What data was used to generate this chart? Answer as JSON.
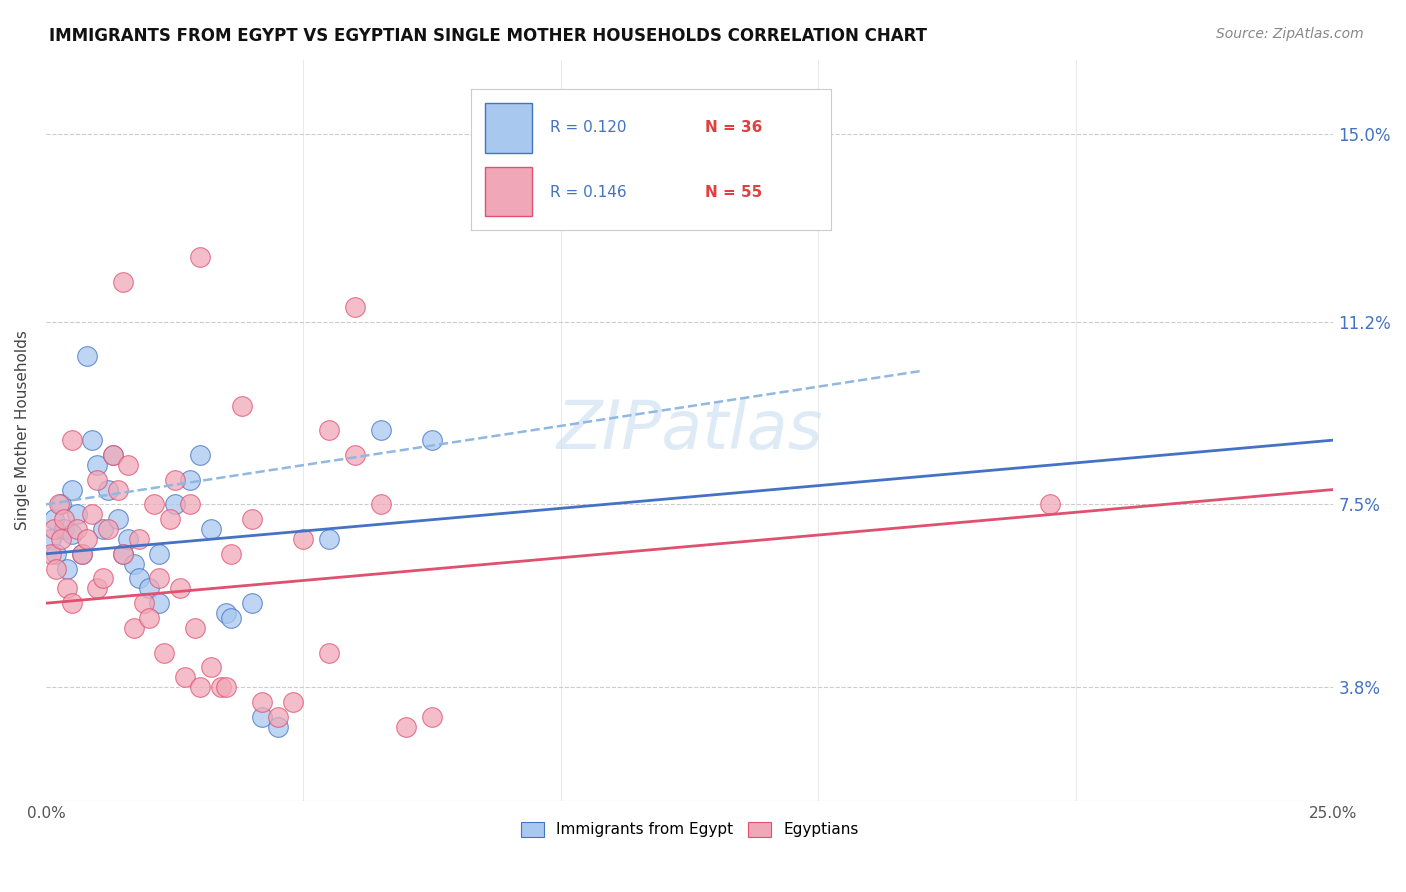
{
  "title": "IMMIGRANTS FROM EGYPT VS EGYPTIAN SINGLE MOTHER HOUSEHOLDS CORRELATION CHART",
  "source": "Source: ZipAtlas.com",
  "ylabel": "Single Mother Households",
  "yticks": [
    "3.8%",
    "7.5%",
    "11.2%",
    "15.0%"
  ],
  "ytick_vals": [
    3.8,
    7.5,
    11.2,
    15.0
  ],
  "xlim": [
    0.0,
    25.0
  ],
  "ylim": [
    1.5,
    16.5
  ],
  "legend_r1": "R = 0.120",
  "legend_n1": "N = 36",
  "legend_r2": "R = 0.146",
  "legend_n2": "N = 55",
  "color_blue": "#A8C8F0",
  "color_pink": "#F0A8B8",
  "line_blue": "#4472C4",
  "line_pink": "#E05070",
  "line_dashed_color": "#90B8E0",
  "watermark": "ZIPatlas",
  "blue_points": [
    [
      0.1,
      6.8
    ],
    [
      0.15,
      7.2
    ],
    [
      0.2,
      6.5
    ],
    [
      0.3,
      7.5
    ],
    [
      0.35,
      7.0
    ],
    [
      0.4,
      6.2
    ],
    [
      0.5,
      6.9
    ],
    [
      0.5,
      7.8
    ],
    [
      0.6,
      7.3
    ],
    [
      0.7,
      6.5
    ],
    [
      0.8,
      10.5
    ],
    [
      0.9,
      8.8
    ],
    [
      1.0,
      8.3
    ],
    [
      1.1,
      7.0
    ],
    [
      1.2,
      7.8
    ],
    [
      1.3,
      8.5
    ],
    [
      1.4,
      7.2
    ],
    [
      1.5,
      6.5
    ],
    [
      1.6,
      6.8
    ],
    [
      1.7,
      6.3
    ],
    [
      1.8,
      6.0
    ],
    [
      2.0,
      5.8
    ],
    [
      2.2,
      5.5
    ],
    [
      2.2,
      6.5
    ],
    [
      2.5,
      7.5
    ],
    [
      2.8,
      8.0
    ],
    [
      3.0,
      8.5
    ],
    [
      3.2,
      7.0
    ],
    [
      3.5,
      5.3
    ],
    [
      3.6,
      5.2
    ],
    [
      4.0,
      5.5
    ],
    [
      4.2,
      3.2
    ],
    [
      4.5,
      3.0
    ],
    [
      5.5,
      6.8
    ],
    [
      6.5,
      9.0
    ],
    [
      7.5,
      8.8
    ]
  ],
  "pink_points": [
    [
      0.1,
      6.5
    ],
    [
      0.15,
      7.0
    ],
    [
      0.2,
      6.2
    ],
    [
      0.25,
      7.5
    ],
    [
      0.3,
      6.8
    ],
    [
      0.35,
      7.2
    ],
    [
      0.4,
      5.8
    ],
    [
      0.5,
      5.5
    ],
    [
      0.5,
      8.8
    ],
    [
      0.6,
      7.0
    ],
    [
      0.7,
      6.5
    ],
    [
      0.8,
      6.8
    ],
    [
      0.9,
      7.3
    ],
    [
      1.0,
      8.0
    ],
    [
      1.0,
      5.8
    ],
    [
      1.1,
      6.0
    ],
    [
      1.2,
      7.0
    ],
    [
      1.3,
      8.5
    ],
    [
      1.4,
      7.8
    ],
    [
      1.5,
      6.5
    ],
    [
      1.5,
      12.0
    ],
    [
      1.6,
      8.3
    ],
    [
      1.7,
      5.0
    ],
    [
      1.8,
      6.8
    ],
    [
      1.9,
      5.5
    ],
    [
      2.0,
      5.2
    ],
    [
      2.1,
      7.5
    ],
    [
      2.2,
      6.0
    ],
    [
      2.3,
      4.5
    ],
    [
      2.4,
      7.2
    ],
    [
      2.5,
      8.0
    ],
    [
      2.6,
      5.8
    ],
    [
      2.7,
      4.0
    ],
    [
      2.8,
      7.5
    ],
    [
      2.9,
      5.0
    ],
    [
      3.0,
      3.8
    ],
    [
      3.2,
      4.2
    ],
    [
      3.4,
      3.8
    ],
    [
      3.5,
      3.8
    ],
    [
      3.6,
      6.5
    ],
    [
      3.8,
      9.5
    ],
    [
      4.0,
      7.2
    ],
    [
      4.2,
      3.5
    ],
    [
      4.5,
      3.2
    ],
    [
      4.8,
      3.5
    ],
    [
      5.0,
      6.8
    ],
    [
      5.5,
      4.5
    ],
    [
      6.0,
      8.5
    ],
    [
      6.0,
      11.5
    ],
    [
      6.5,
      7.5
    ],
    [
      7.0,
      3.0
    ],
    [
      7.5,
      3.2
    ],
    [
      19.5,
      7.5
    ],
    [
      5.5,
      9.0
    ],
    [
      3.0,
      12.5
    ]
  ],
  "blue_line": [
    [
      0.0,
      6.5
    ],
    [
      25.0,
      8.8
    ]
  ],
  "pink_line": [
    [
      0.0,
      5.5
    ],
    [
      25.0,
      7.8
    ]
  ],
  "dashed_line": [
    [
      0.0,
      7.5
    ],
    [
      17.0,
      10.2
    ]
  ]
}
